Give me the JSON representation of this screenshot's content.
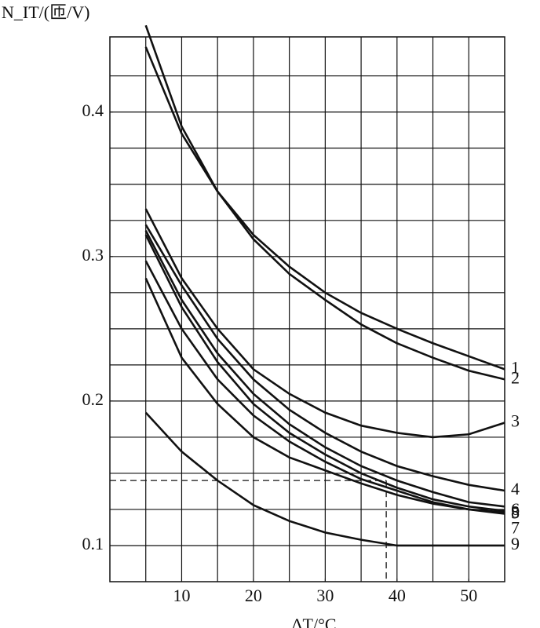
{
  "chart_data": {
    "type": "line",
    "y_label": "N_IT/(匝/V)",
    "x_label": "ΔT/°C",
    "x": [
      5,
      10,
      15,
      20,
      25,
      30,
      35,
      40,
      45,
      50,
      55
    ],
    "series": [
      {
        "name": "1",
        "color": "#111111",
        "values": [
          0.46,
          0.39,
          0.345,
          0.315,
          0.293,
          0.275,
          0.261,
          0.25,
          0.24,
          0.231,
          0.222
        ]
      },
      {
        "name": "2",
        "color": "#111111",
        "values": [
          0.445,
          0.385,
          0.345,
          0.312,
          0.288,
          0.27,
          0.253,
          0.24,
          0.23,
          0.221,
          0.215
        ]
      },
      {
        "name": "3",
        "color": "#111111",
        "values": [
          0.333,
          0.285,
          0.25,
          0.222,
          0.205,
          0.192,
          0.183,
          0.178,
          0.175,
          0.177,
          0.185
        ]
      },
      {
        "name": "4",
        "color": "#111111",
        "values": [
          0.322,
          0.28,
          0.243,
          0.215,
          0.194,
          0.178,
          0.165,
          0.155,
          0.148,
          0.142,
          0.138
        ]
      },
      {
        "name": "5",
        "color": "#111111",
        "values": [
          0.318,
          0.27,
          0.233,
          0.205,
          0.184,
          0.168,
          0.155,
          0.145,
          0.137,
          0.13,
          0.127
        ]
      },
      {
        "name": "6",
        "color": "#111111",
        "values": [
          0.315,
          0.265,
          0.227,
          0.198,
          0.178,
          0.163,
          0.15,
          0.14,
          0.132,
          0.127,
          0.124
        ]
      },
      {
        "name": "7",
        "color": "#111111",
        "values": [
          0.297,
          0.25,
          0.215,
          0.19,
          0.172,
          0.158,
          0.146,
          0.138,
          0.13,
          0.125,
          0.123
        ]
      },
      {
        "name": "8",
        "color": "#111111",
        "values": [
          0.285,
          0.23,
          0.198,
          0.175,
          0.161,
          0.152,
          0.143,
          0.135,
          0.129,
          0.125,
          0.122
        ]
      },
      {
        "name": "9",
        "color": "#111111",
        "values": [
          0.192,
          0.165,
          0.145,
          0.128,
          0.117,
          0.109,
          0.104,
          0.1,
          0.1,
          0.1,
          0.1
        ]
      }
    ],
    "guide": {
      "x": 38.5,
      "y": 0.145
    },
    "xlim": [
      0,
      55
    ],
    "ylim": [
      0.075,
      0.452
    ],
    "xticks": [
      10,
      20,
      30,
      40,
      50
    ],
    "yticks": [
      0.1,
      0.2,
      0.3,
      0.4
    ],
    "xgrid": [
      5,
      10,
      15,
      20,
      25,
      30,
      35,
      40,
      45,
      50
    ],
    "ygrid": [
      0.1,
      0.125,
      0.15,
      0.175,
      0.2,
      0.225,
      0.25,
      0.275,
      0.3,
      0.325,
      0.35,
      0.375,
      0.4,
      0.425
    ]
  }
}
